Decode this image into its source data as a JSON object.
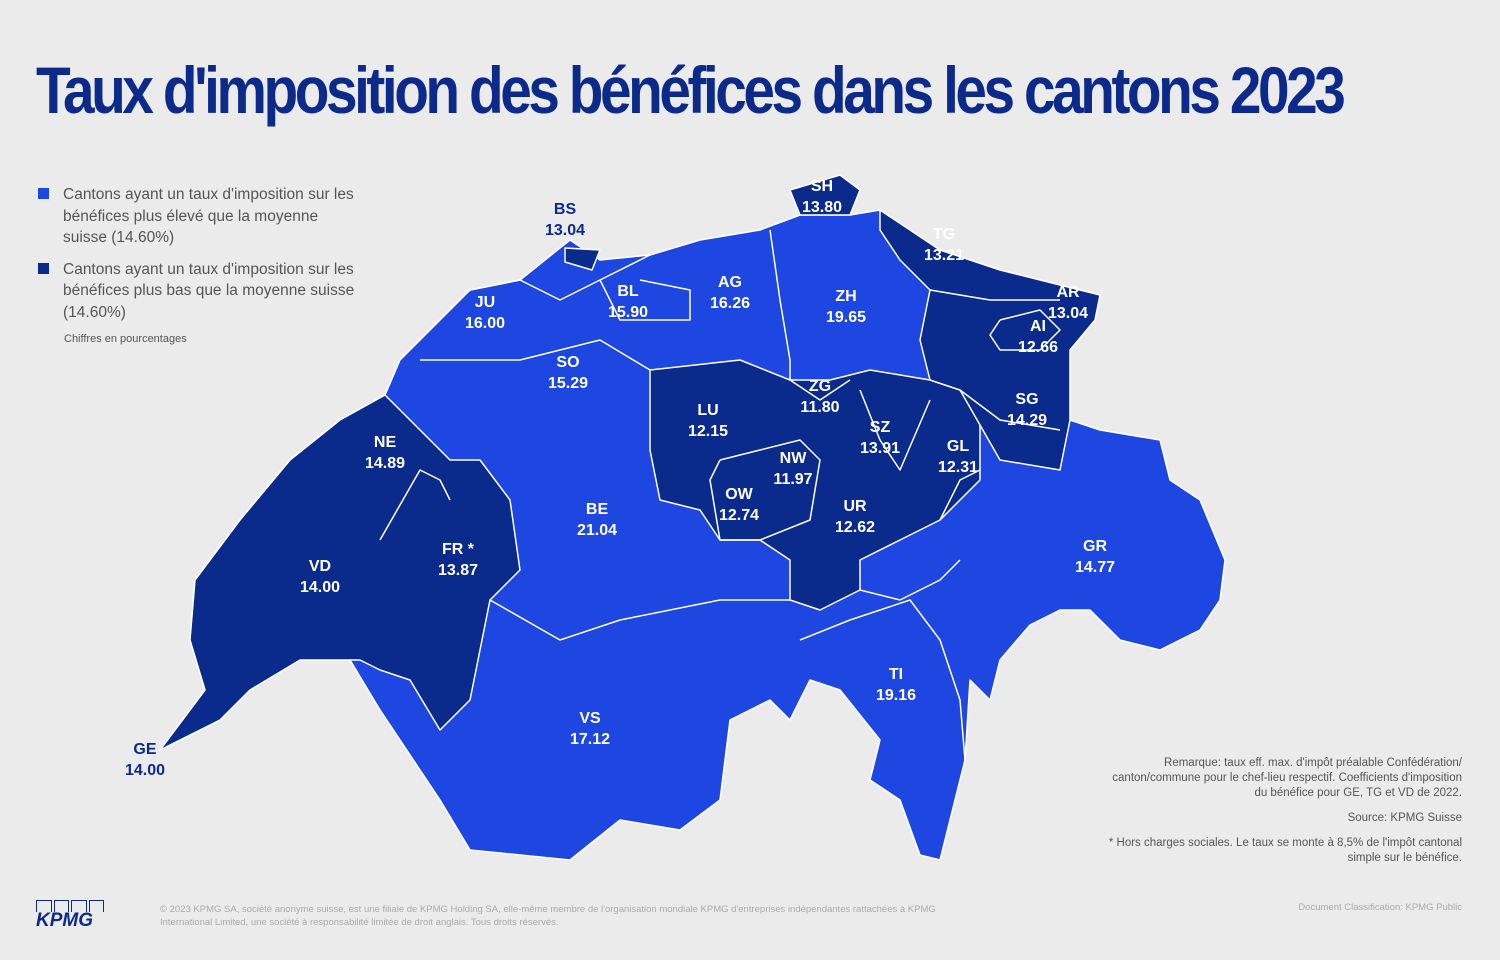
{
  "title": "Taux d'imposition des bénéfices dans les cantons 2023",
  "colors": {
    "above_average": "#1e46e0",
    "below_average": "#0a2a8c",
    "title": "#0c2a8a",
    "background": "#ebebeb"
  },
  "legend": {
    "items": [
      {
        "label": "Cantons ayant un taux d'imposition sur les bénéfices plus élevé que la moyenne suisse (14.60%)",
        "color": "#1e46e0"
      },
      {
        "label": "Cantons ayant un taux d'imposition sur les bénéfices plus bas que la moyenne suisse (14.60%)",
        "color": "#0a2a8c"
      }
    ],
    "note": "Chiffres en pourcentages"
  },
  "average": 14.6,
  "cantons": [
    {
      "code": "BS",
      "rate": "13.04"
    },
    {
      "code": "SH",
      "rate": "13.80"
    },
    {
      "code": "TG",
      "rate": "13.21"
    },
    {
      "code": "AR",
      "rate": "13.04"
    },
    {
      "code": "AI",
      "rate": "12.66"
    },
    {
      "code": "SG",
      "rate": "14.29"
    },
    {
      "code": "JU",
      "rate": "16.00"
    },
    {
      "code": "BL",
      "rate": "15.90"
    },
    {
      "code": "AG",
      "rate": "16.26"
    },
    {
      "code": "ZH",
      "rate": "19.65"
    },
    {
      "code": "SO",
      "rate": "15.29"
    },
    {
      "code": "ZG",
      "rate": "11.80"
    },
    {
      "code": "LU",
      "rate": "12.15"
    },
    {
      "code": "SZ",
      "rate": "13.91"
    },
    {
      "code": "GL",
      "rate": "12.31"
    },
    {
      "code": "NW",
      "rate": "11.97"
    },
    {
      "code": "OW",
      "rate": "12.74"
    },
    {
      "code": "UR",
      "rate": "12.62"
    },
    {
      "code": "NE",
      "rate": "14.89"
    },
    {
      "code": "BE",
      "rate": "21.04"
    },
    {
      "code": "FR *",
      "rate": "13.87"
    },
    {
      "code": "VD",
      "rate": "14.00"
    },
    {
      "code": "GR",
      "rate": "14.77"
    },
    {
      "code": "TI",
      "rate": "19.16"
    },
    {
      "code": "VS",
      "rate": "17.12"
    },
    {
      "code": "GE",
      "rate": "14.00"
    }
  ],
  "remarks": {
    "note": "Remarque: taux eff. max. d'impôt préalable Confédération/ canton/commune pour le chef-lieu respectif. Coefficients d'imposition du bénéfice pour GE, TG et VD de 2022.",
    "source": "Source: KPMG Suisse",
    "footnote": "* Hors charges sociales. Le taux se monte à 8,5% de l'impôt cantonal simple sur le bénéfice."
  },
  "footer": {
    "copyright": "© 2023 KPMG SA, société anonyme suisse, est une filiale de KPMG Holding SA, elle-même membre de l'organisation mondiale KPMG d'entreprises indépendantes rattachées à KPMG International Limited, une société à responsabilité limitée de droit anglais. Tous droits réservés.",
    "classification": "Document Classification: KPMG Public",
    "logo": "KPMG"
  }
}
